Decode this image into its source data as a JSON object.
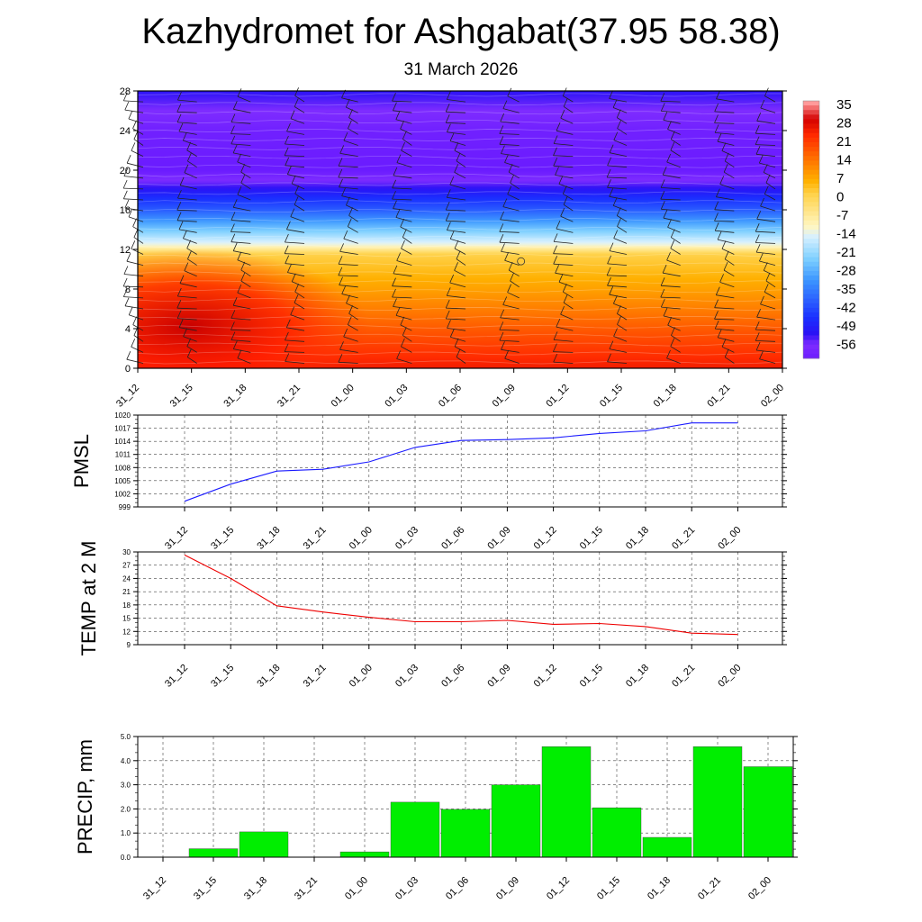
{
  "header": {
    "title": "Kazhydromet for Ashgabat(37.95 58.38)",
    "date": "31 March 2026"
  },
  "time_labels": [
    "31_12",
    "31_15",
    "31_18",
    "31_21",
    "01_00",
    "01_03",
    "01_06",
    "01_09",
    "01_12",
    "01_15",
    "01_18",
    "01_21",
    "02_00"
  ],
  "chart_data": [
    {
      "type": "heatmap",
      "name": "cross-section",
      "x": [
        "31_12",
        "31_15",
        "31_18",
        "31_21",
        "01_00",
        "01_03",
        "01_06",
        "01_09",
        "01_12",
        "01_15",
        "01_18",
        "01_21",
        "02_00"
      ],
      "y_ticks": [
        0,
        4,
        8,
        12,
        16,
        20,
        24,
        28
      ],
      "ylim": [
        0,
        28
      ],
      "colorbar_labels": [
        "35",
        "28",
        "21",
        "14",
        "7",
        "0",
        "-7",
        "-14",
        "-21",
        "-28",
        "-35",
        "-42",
        "-49",
        "-56"
      ],
      "colors": {
        "warm": [
          "#d40000",
          "#ff3a0a",
          "#ff7a00",
          "#ffb000",
          "#ffe066"
        ],
        "cold": [
          "#c8ecff",
          "#5ab4ff",
          "#1a3cff",
          "#2a10f0",
          "#7b2fff",
          "#9b3dff"
        ]
      },
      "temperature_profile": [
        {
          "height": 0,
          "temp": 26
        },
        {
          "height": 4,
          "temp": 18
        },
        {
          "height": 8,
          "temp": 9
        },
        {
          "height": 11.5,
          "temp": 2
        },
        {
          "height": 12.5,
          "temp": -12
        },
        {
          "height": 16,
          "temp": -38
        },
        {
          "height": 20,
          "temp": -60
        },
        {
          "height": 24,
          "temp": -58
        },
        {
          "height": 28,
          "temp": -50
        }
      ],
      "symbols": "wind barbs"
    },
    {
      "type": "line",
      "name": "PMSL",
      "ylabel": "PMSL",
      "ylim": [
        999,
        1020
      ],
      "y_ticks": [
        999,
        1002,
        1005,
        1008,
        1011,
        1014,
        1017,
        1020
      ],
      "x": [
        "31_12",
        "31_15",
        "31_18",
        "31_21",
        "01_00",
        "01_03",
        "01_06",
        "01_09",
        "01_12",
        "01_15",
        "01_18",
        "01_21",
        "02_00"
      ],
      "values": [
        1000.3,
        1004.2,
        1007.2,
        1007.6,
        1009.3,
        1012.6,
        1014.2,
        1014.4,
        1014.8,
        1015.8,
        1016.4,
        1018.2,
        1018.2
      ],
      "color": "#1a1aff"
    },
    {
      "type": "line",
      "name": "TEMP at 2 M",
      "ylabel": "TEMP at 2 M",
      "ylim": [
        9,
        30
      ],
      "y_ticks": [
        9,
        12,
        15,
        18,
        21,
        24,
        27,
        30
      ],
      "x": [
        "31_12",
        "31_15",
        "31_18",
        "31_21",
        "01_00",
        "01_03",
        "01_06",
        "01_09",
        "01_12",
        "01_15",
        "01_18",
        "01_21",
        "02_00"
      ],
      "values": [
        29.3,
        24.0,
        17.8,
        16.4,
        15.2,
        14.2,
        14.2,
        14.5,
        13.6,
        13.8,
        13.1,
        11.6,
        11.3
      ],
      "color": "#ee0000"
    },
    {
      "type": "bar",
      "name": "PRECIP, mm",
      "ylabel": "PRECIP, mm",
      "ylim": [
        0,
        5
      ],
      "y_ticks": [
        "0.0",
        "1.0",
        "2.0",
        "3.0",
        "4.0",
        "5.0"
      ],
      "categories": [
        "31_12",
        "31_15",
        "31_18",
        "31_21",
        "01_00",
        "01_03",
        "01_06",
        "01_09",
        "01_12",
        "01_15",
        "01_18",
        "01_21",
        "02_00"
      ],
      "values": [
        0,
        0.35,
        1.05,
        0,
        0.22,
        2.28,
        1.98,
        3.0,
        4.58,
        2.05,
        0.82,
        4.58,
        3.75
      ],
      "color": "#00ee00"
    }
  ]
}
